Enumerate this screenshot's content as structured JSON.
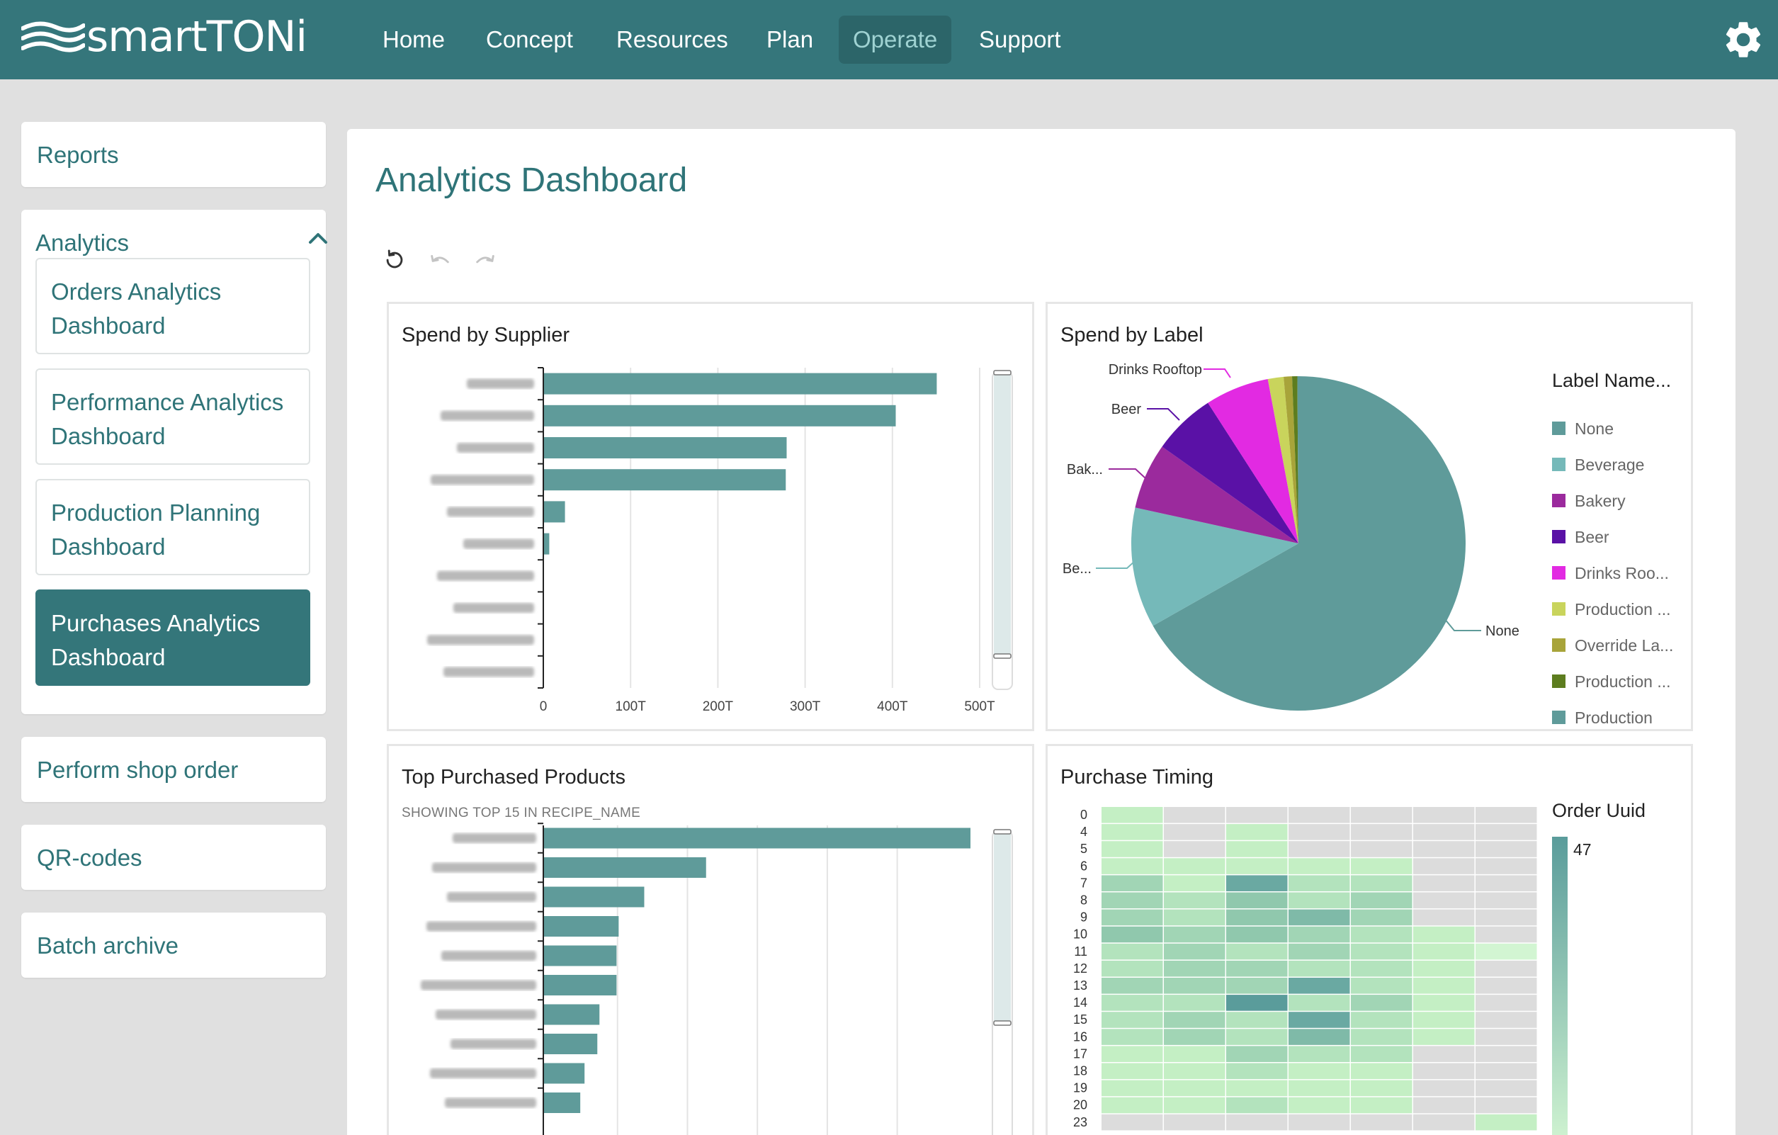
{
  "app": {
    "logo_text": "smartTONi"
  },
  "nav": {
    "items": [
      {
        "label": "Home",
        "active": false
      },
      {
        "label": "Concept",
        "active": false
      },
      {
        "label": "Resources",
        "active": false
      },
      {
        "label": "Plan",
        "active": false
      },
      {
        "label": "Operate",
        "active": true
      },
      {
        "label": "Support",
        "active": false
      }
    ],
    "settings_icon": "gear-icon"
  },
  "sidebar": {
    "reports_label": "Reports",
    "analytics": {
      "label": "Analytics",
      "expanded": true,
      "items": [
        {
          "label": "Orders Analytics Dashboard",
          "active": false
        },
        {
          "label": "Performance Analytics Dashboard",
          "active": false
        },
        {
          "label": "Production Planning Dashboard",
          "active": false
        },
        {
          "label": "Purchases Analytics Dashboard",
          "active": true
        }
      ]
    },
    "perform_shop_order_label": "Perform shop order",
    "qr_codes_label": "QR-codes",
    "batch_archive_label": "Batch archive"
  },
  "main": {
    "title": "Analytics Dashboard",
    "toolbar": {
      "reset_icon": "reset-icon",
      "undo_icon": "undo-icon",
      "redo_icon": "redo-icon"
    }
  },
  "colors": {
    "brand": "#35767b",
    "bar": "#5f9b9a",
    "none": "#5f9b9a",
    "beverage": "#75b9b9",
    "bakery": "#9b2a9d",
    "beer": "#5a11a6",
    "drinks_rooftop": "#e22ae2",
    "production_1": "#c9d45c",
    "override": "#a8a43a",
    "production_2": "#5d7d1f"
  },
  "chart_data": [
    {
      "type": "bar",
      "orientation": "horizontal",
      "title": "Spend by Supplier",
      "categories_blurred": true,
      "values": [
        450000,
        403000,
        278000,
        277000,
        24000,
        6000,
        0,
        0,
        0,
        0
      ],
      "xlim": [
        0,
        500000
      ],
      "x_tick_labels": [
        "0",
        "100T",
        "200T",
        "300T",
        "400T",
        "500T"
      ]
    },
    {
      "type": "pie",
      "title": "Spend by Label",
      "legend_title": "Label Name...",
      "slices": [
        {
          "label": "None",
          "value": 66
        },
        {
          "label": "Beverage",
          "value": 11.5
        },
        {
          "label": "Bakery",
          "value": 6.3
        },
        {
          "label": "Beer",
          "value": 6
        },
        {
          "label": "Drinks Rooftop",
          "value": 6.1
        },
        {
          "label": "Production ...",
          "value": 1.5
        },
        {
          "label": "Override La...",
          "value": 0.8
        },
        {
          "label": "Production ...",
          "value": 0.5
        },
        {
          "label": "Production",
          "value": 0.1
        }
      ],
      "legend_labels": [
        "None",
        "Beverage",
        "Bakery",
        "Beer",
        "Drinks Roo...",
        "Production ...",
        "Override La...",
        "Production ...",
        "Production"
      ],
      "outer_labels": [
        "Drinks Rooftop",
        "Beer",
        "Bak...",
        "Be...",
        "None"
      ]
    },
    {
      "type": "bar",
      "orientation": "horizontal",
      "title": "Top Purchased Products",
      "subtitle": "SHOWING TOP 15 IN RECIPE_NAME",
      "categories_blurred": true,
      "values": [
        100,
        38,
        23.5,
        17.5,
        17,
        17,
        13,
        12.5,
        9.5,
        8.5
      ]
    },
    {
      "type": "heatmap",
      "title": "Purchase Timing",
      "legend_title": "Order Uuid",
      "legend_max": "47",
      "y_labels": [
        "0",
        "4",
        "5",
        "6",
        "7",
        "8",
        "9",
        "10",
        "11",
        "12",
        "13",
        "14",
        "15",
        "16",
        "17",
        "18",
        "19",
        "20",
        "23"
      ],
      "columns": 7,
      "cells": [
        [
          2,
          0,
          0,
          0,
          0,
          0,
          0
        ],
        [
          2,
          0,
          2,
          0,
          0,
          0,
          0
        ],
        [
          2,
          0,
          2,
          0,
          0,
          0,
          0
        ],
        [
          2,
          2,
          2,
          2,
          2,
          0,
          0
        ],
        [
          4,
          2,
          7,
          3,
          3,
          0,
          0
        ],
        [
          4,
          3,
          5,
          3,
          4,
          0,
          0
        ],
        [
          4,
          3,
          5,
          6,
          4,
          0,
          0
        ],
        [
          5,
          4,
          5,
          4,
          3,
          2,
          0
        ],
        [
          3,
          4,
          3,
          4,
          3,
          2,
          1
        ],
        [
          3,
          4,
          4,
          3,
          3,
          2,
          0
        ],
        [
          4,
          4,
          4,
          7,
          3,
          2,
          0
        ],
        [
          3,
          3,
          8,
          3,
          4,
          2,
          0
        ],
        [
          3,
          4,
          3,
          7,
          3,
          2,
          0
        ],
        [
          3,
          4,
          3,
          6,
          3,
          2,
          0
        ],
        [
          2,
          2,
          4,
          3,
          3,
          0,
          0
        ],
        [
          2,
          2,
          3,
          2,
          2,
          0,
          0
        ],
        [
          2,
          2,
          2,
          2,
          2,
          0,
          0
        ],
        [
          2,
          2,
          3,
          2,
          2,
          0,
          0
        ],
        [
          0,
          0,
          0,
          0,
          0,
          0,
          2
        ]
      ]
    }
  ]
}
